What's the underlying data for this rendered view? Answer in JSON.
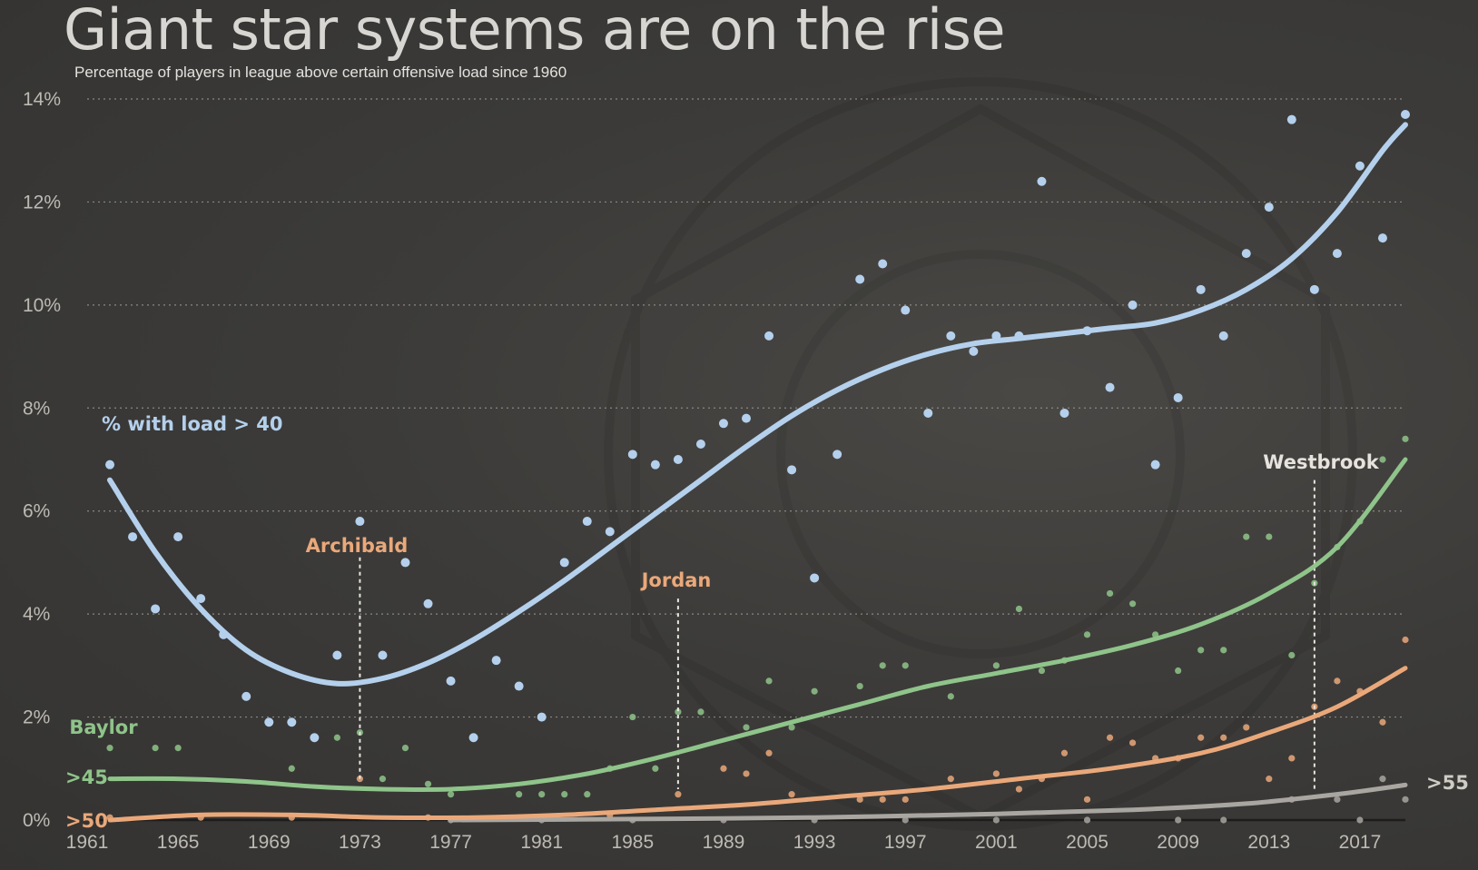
{
  "colors": {
    "load40": "#b4d0ec",
    "load45": "#8fc48a",
    "load50": "#eaa87a",
    "load55": "#a9a6a1",
    "grid": "#8a8782",
    "annotation": "#e6e3de"
  },
  "chart_data": {
    "type": "scatter",
    "title": "Giant star systems are on the rise",
    "subtitle": "Percentage of players in league above certain offensive load since 1960",
    "xlabel": "",
    "ylabel": "",
    "xlim": [
      1961,
      2019
    ],
    "ylim": [
      0,
      14
    ],
    "grid": true,
    "x_ticks": [
      1961,
      1965,
      1969,
      1973,
      1977,
      1981,
      1985,
      1989,
      1993,
      1997,
      2001,
      2005,
      2009,
      2013,
      2017
    ],
    "y_ticks": [
      {
        "value": 0,
        "label": "0%"
      },
      {
        "value": 2,
        "label": "2%"
      },
      {
        "value": 4,
        "label": "4%"
      },
      {
        "value": 6,
        "label": "6%"
      },
      {
        "value": 8,
        "label": "8%"
      },
      {
        "value": 10,
        "label": "10%"
      },
      {
        "value": 12,
        "label": "12%"
      },
      {
        "value": 14,
        "label": "14%"
      }
    ],
    "series": [
      {
        "key": "load40",
        "name": "% with load > 40",
        "points": [
          [
            1962,
            6.9
          ],
          [
            1963,
            5.5
          ],
          [
            1964,
            4.1
          ],
          [
            1965,
            5.5
          ],
          [
            1966,
            4.3
          ],
          [
            1967,
            3.6
          ],
          [
            1968,
            2.4
          ],
          [
            1969,
            1.9
          ],
          [
            1970,
            1.9
          ],
          [
            1971,
            1.6
          ],
          [
            1972,
            3.2
          ],
          [
            1973,
            5.8
          ],
          [
            1974,
            3.2
          ],
          [
            1975,
            5.0
          ],
          [
            1976,
            4.2
          ],
          [
            1977,
            2.7
          ],
          [
            1978,
            1.6
          ],
          [
            1979,
            3.1
          ],
          [
            1980,
            2.6
          ],
          [
            1981,
            2.0
          ],
          [
            1982,
            5.0
          ],
          [
            1983,
            5.8
          ],
          [
            1984,
            5.6
          ],
          [
            1985,
            7.1
          ],
          [
            1986,
            6.9
          ],
          [
            1987,
            7.0
          ],
          [
            1988,
            7.3
          ],
          [
            1989,
            7.7
          ],
          [
            1990,
            7.8
          ],
          [
            1991,
            9.4
          ],
          [
            1992,
            6.8
          ],
          [
            1993,
            4.7
          ],
          [
            1994,
            7.1
          ],
          [
            1995,
            10.5
          ],
          [
            1996,
            10.8
          ],
          [
            1997,
            9.9
          ],
          [
            1998,
            7.9
          ],
          [
            1999,
            9.4
          ],
          [
            2000,
            9.1
          ],
          [
            2001,
            9.4
          ],
          [
            2002,
            9.4
          ],
          [
            2003,
            12.4
          ],
          [
            2004,
            7.9
          ],
          [
            2005,
            9.5
          ],
          [
            2006,
            8.4
          ],
          [
            2007,
            10.0
          ],
          [
            2008,
            6.9
          ],
          [
            2009,
            8.2
          ],
          [
            2010,
            10.3
          ],
          [
            2011,
            9.4
          ],
          [
            2012,
            11.0
          ],
          [
            2013,
            11.9
          ],
          [
            2014,
            13.6
          ],
          [
            2015,
            10.3
          ],
          [
            2016,
            11.0
          ],
          [
            2017,
            12.7
          ],
          [
            2018,
            11.3
          ],
          [
            2019,
            13.7
          ]
        ],
        "trend": [
          [
            1962,
            6.6
          ],
          [
            1964,
            5.2
          ],
          [
            1966,
            4.1
          ],
          [
            1968,
            3.3
          ],
          [
            1970,
            2.85
          ],
          [
            1972,
            2.65
          ],
          [
            1974,
            2.75
          ],
          [
            1976,
            3.05
          ],
          [
            1978,
            3.5
          ],
          [
            1980,
            4.05
          ],
          [
            1982,
            4.65
          ],
          [
            1984,
            5.3
          ],
          [
            1986,
            5.95
          ],
          [
            1988,
            6.6
          ],
          [
            1990,
            7.25
          ],
          [
            1992,
            7.85
          ],
          [
            1994,
            8.35
          ],
          [
            1996,
            8.75
          ],
          [
            1998,
            9.05
          ],
          [
            2000,
            9.25
          ],
          [
            2002,
            9.35
          ],
          [
            2004,
            9.45
          ],
          [
            2006,
            9.55
          ],
          [
            2008,
            9.65
          ],
          [
            2010,
            9.9
          ],
          [
            2012,
            10.3
          ],
          [
            2014,
            10.9
          ],
          [
            2016,
            11.8
          ],
          [
            2018,
            13.0
          ],
          [
            2019,
            13.5
          ]
        ],
        "label": "% with load > 40"
      },
      {
        "key": "load45",
        "name": ">45",
        "points": [
          [
            1962,
            1.4
          ],
          [
            1964,
            1.4
          ],
          [
            1965,
            1.4
          ],
          [
            1970,
            1.0
          ],
          [
            1972,
            1.6
          ],
          [
            1973,
            1.7
          ],
          [
            1974,
            0.8
          ],
          [
            1975,
            1.4
          ],
          [
            1976,
            0.7
          ],
          [
            1977,
            0.5
          ],
          [
            1980,
            0.5
          ],
          [
            1981,
            0.5
          ],
          [
            1982,
            0.5
          ],
          [
            1983,
            0.5
          ],
          [
            1984,
            1.0
          ],
          [
            1985,
            2.0
          ],
          [
            1986,
            1.0
          ],
          [
            1987,
            2.1
          ],
          [
            1988,
            2.1
          ],
          [
            1990,
            1.8
          ],
          [
            1991,
            2.7
          ],
          [
            1992,
            1.8
          ],
          [
            1993,
            2.5
          ],
          [
            1995,
            2.6
          ],
          [
            1996,
            3.0
          ],
          [
            1997,
            3.0
          ],
          [
            1999,
            2.4
          ],
          [
            2001,
            3.0
          ],
          [
            2002,
            4.1
          ],
          [
            2003,
            2.9
          ],
          [
            2004,
            3.1
          ],
          [
            2005,
            3.6
          ],
          [
            2006,
            4.4
          ],
          [
            2007,
            4.2
          ],
          [
            2008,
            3.6
          ],
          [
            2009,
            2.9
          ],
          [
            2010,
            3.3
          ],
          [
            2011,
            3.3
          ],
          [
            2012,
            5.5
          ],
          [
            2013,
            5.5
          ],
          [
            2014,
            3.2
          ],
          [
            2015,
            4.6
          ],
          [
            2016,
            5.3
          ],
          [
            2017,
            5.8
          ],
          [
            2018,
            7.0
          ],
          [
            2019,
            7.4
          ]
        ],
        "trend": [
          [
            1962,
            0.8
          ],
          [
            1965,
            0.8
          ],
          [
            1968,
            0.75
          ],
          [
            1971,
            0.65
          ],
          [
            1974,
            0.6
          ],
          [
            1977,
            0.6
          ],
          [
            1980,
            0.7
          ],
          [
            1983,
            0.9
          ],
          [
            1986,
            1.2
          ],
          [
            1989,
            1.55
          ],
          [
            1992,
            1.9
          ],
          [
            1995,
            2.25
          ],
          [
            1998,
            2.6
          ],
          [
            2001,
            2.85
          ],
          [
            2004,
            3.1
          ],
          [
            2007,
            3.4
          ],
          [
            2010,
            3.8
          ],
          [
            2013,
            4.4
          ],
          [
            2016,
            5.3
          ],
          [
            2019,
            7.0
          ]
        ],
        "label": ">45"
      },
      {
        "key": "load50",
        "name": ">50",
        "points": [
          [
            1962,
            0.05
          ],
          [
            1966,
            0.05
          ],
          [
            1970,
            0.05
          ],
          [
            1973,
            0.8
          ],
          [
            1976,
            0.05
          ],
          [
            1980,
            0.05
          ],
          [
            1984,
            0.1
          ],
          [
            1987,
            0.5
          ],
          [
            1989,
            1.0
          ],
          [
            1990,
            0.9
          ],
          [
            1991,
            1.3
          ],
          [
            1992,
            0.5
          ],
          [
            1995,
            0.4
          ],
          [
            1996,
            0.4
          ],
          [
            1997,
            0.4
          ],
          [
            1999,
            0.8
          ],
          [
            2001,
            0.9
          ],
          [
            2002,
            0.6
          ],
          [
            2003,
            0.8
          ],
          [
            2004,
            1.3
          ],
          [
            2005,
            0.4
          ],
          [
            2006,
            1.6
          ],
          [
            2007,
            1.5
          ],
          [
            2008,
            1.2
          ],
          [
            2009,
            1.2
          ],
          [
            2010,
            1.6
          ],
          [
            2011,
            1.6
          ],
          [
            2012,
            1.8
          ],
          [
            2013,
            0.8
          ],
          [
            2014,
            1.2
          ],
          [
            2015,
            2.2
          ],
          [
            2016,
            2.7
          ],
          [
            2017,
            2.5
          ],
          [
            2018,
            1.9
          ],
          [
            2019,
            3.5
          ]
        ],
        "trend": [
          [
            1962,
            0.0
          ],
          [
            1966,
            0.1
          ],
          [
            1970,
            0.1
          ],
          [
            1974,
            0.05
          ],
          [
            1978,
            0.05
          ],
          [
            1982,
            0.1
          ],
          [
            1986,
            0.2
          ],
          [
            1990,
            0.3
          ],
          [
            1994,
            0.45
          ],
          [
            1998,
            0.6
          ],
          [
            2002,
            0.8
          ],
          [
            2006,
            1.0
          ],
          [
            2010,
            1.3
          ],
          [
            2013,
            1.7
          ],
          [
            2016,
            2.2
          ],
          [
            2019,
            2.95
          ]
        ],
        "label": ">50"
      },
      {
        "key": "load55",
        "name": ">55",
        "points": [
          [
            1977,
            0.0
          ],
          [
            1981,
            0.0
          ],
          [
            1985,
            0.0
          ],
          [
            1989,
            0.0
          ],
          [
            1993,
            0.0
          ],
          [
            1997,
            0.0
          ],
          [
            2001,
            0.0
          ],
          [
            2005,
            0.0
          ],
          [
            2009,
            0.0
          ],
          [
            2011,
            0.0
          ],
          [
            2014,
            0.4
          ],
          [
            2016,
            0.4
          ],
          [
            2017,
            0.0
          ],
          [
            2018,
            0.8
          ],
          [
            2019,
            0.4
          ]
        ],
        "trend": [
          [
            1977,
            0.0
          ],
          [
            1985,
            0.02
          ],
          [
            1993,
            0.05
          ],
          [
            2001,
            0.12
          ],
          [
            2007,
            0.2
          ],
          [
            2012,
            0.32
          ],
          [
            2016,
            0.5
          ],
          [
            2019,
            0.68
          ]
        ],
        "label": ">55"
      }
    ],
    "annotations": [
      {
        "key": "archibald",
        "label": "Archibald",
        "x": 1973,
        "y_top": 5.1,
        "y_bottom": 0.8,
        "color_key": "load50"
      },
      {
        "key": "jordan",
        "label": "Jordan",
        "x": 1987,
        "y_top": 4.3,
        "y_bottom": 0.6,
        "color_key": "load50"
      },
      {
        "key": "westbrook",
        "label": "Westbrook",
        "x": 2015,
        "y_top": 6.6,
        "y_bottom": 0.6,
        "color_key": "annotation"
      },
      {
        "key": "baylor",
        "label": "Baylor",
        "x": 1962,
        "y_top": 1.8,
        "y_bottom": 1.8,
        "color_key": "load45"
      }
    ]
  }
}
